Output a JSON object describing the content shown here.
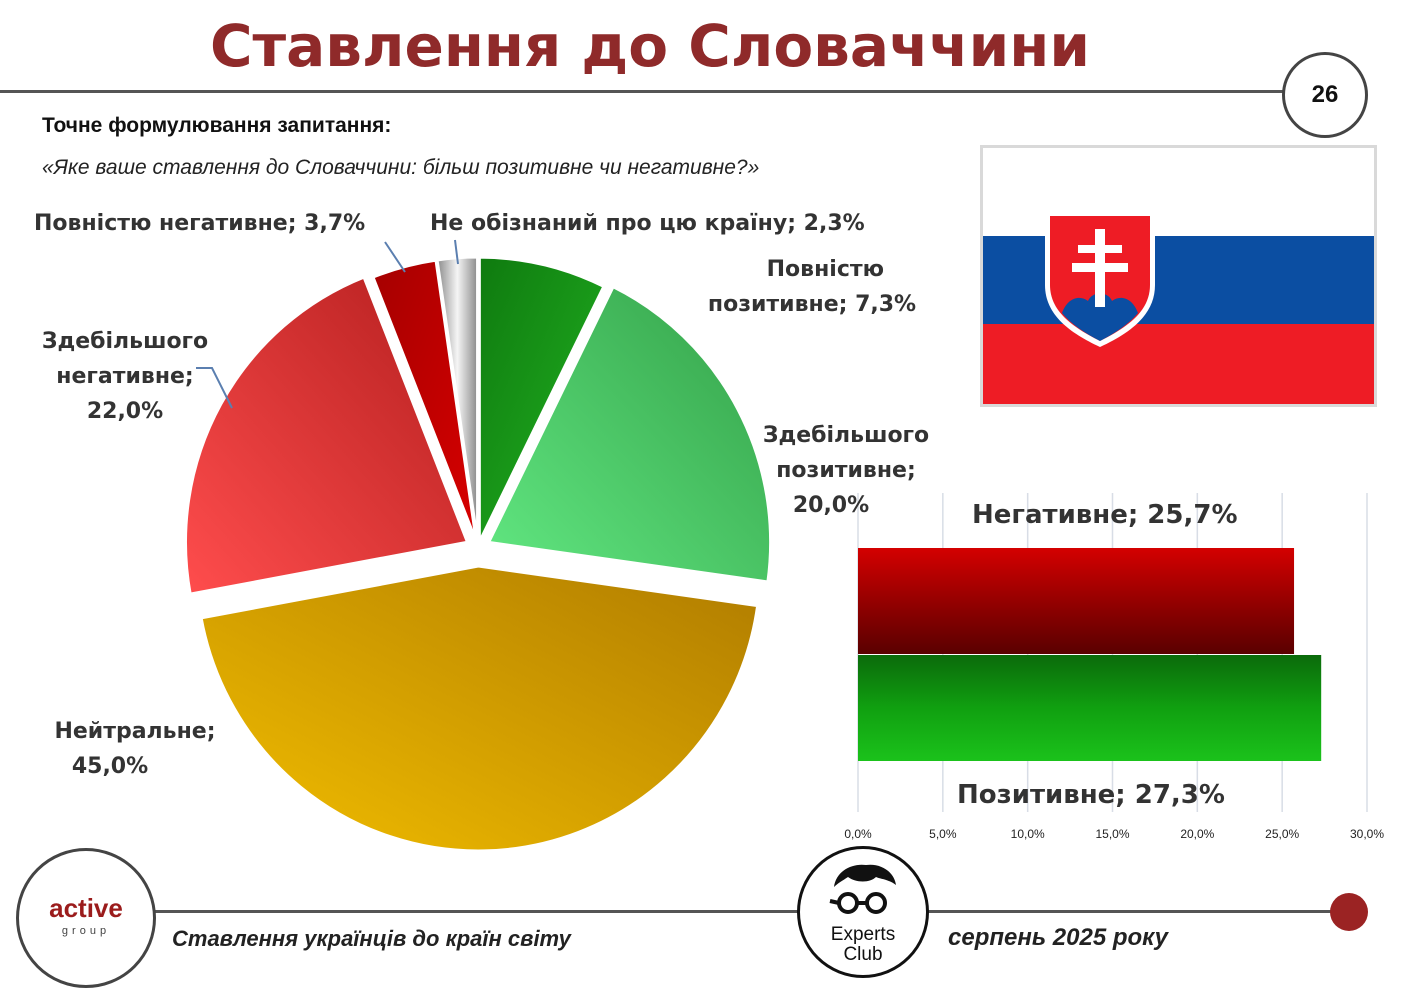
{
  "header": {
    "title": "Ставлення до Словаччини",
    "page_number": "26"
  },
  "question": {
    "heading": "Точне формулювання запитання:",
    "text": "«Яке ваше ставлення до Словаччини: більш позитивне чи негативне?»"
  },
  "pie_labels": {
    "full_neg_line1": "Повністю негативне; 3,7%",
    "unaware_line1": "Не обізнаний про цю країну; 2,3%",
    "full_pos_line1": "Повністю",
    "full_pos_line2": "позитивне; 7,3%",
    "most_pos_line1": "Здебільшого",
    "most_pos_line2": "позитивне;",
    "most_pos_line3": "20,0%",
    "most_neg_line1": "Здебільшого",
    "most_neg_line2": "негативне;",
    "most_neg_line3": "22,0%",
    "neutral_line1": "Нейтральне;",
    "neutral_line2": "45,0%"
  },
  "bar_labels": {
    "negative": "Негативне; 25,7%",
    "positive": "Позитивне; 27,3%"
  },
  "footer": {
    "left_text": "Ставлення українців до країн світу",
    "right_text": "серпень 2025 року",
    "logo_main": "active",
    "logo_sub": "group",
    "experts_line1": "Experts",
    "experts_line2": "Club"
  },
  "colors": {
    "title": "#8f2a2a",
    "full_positive": "#0a8a0a",
    "mostly_positive": "#4fd06a",
    "neutral": "#e0a800",
    "mostly_negative": "#e23a3a",
    "full_negative": "#c00000",
    "unaware": "#b8b8b8",
    "bar_negative": "#b30000",
    "bar_positive": "#12a012"
  },
  "chart_data": [
    {
      "type": "pie",
      "categories": [
        "Повністю позитивне",
        "Здебільшого позитивне",
        "Нейтральне",
        "Здебільшого негативне",
        "Повністю негативне",
        "Не обізнаний про цю країну"
      ],
      "values": [
        7.3,
        20.0,
        45.0,
        22.0,
        3.7,
        2.3
      ],
      "unit": "%"
    },
    {
      "type": "bar",
      "orientation": "horizontal",
      "categories": [
        "Негативне",
        "Позитивне"
      ],
      "values": [
        25.7,
        27.3
      ],
      "xlim": [
        0,
        30
      ],
      "xticks": [
        "0,0%",
        "5,0%",
        "10,0%",
        "15,0%",
        "20,0%",
        "25,0%",
        "30,0%"
      ],
      "grid": true
    }
  ]
}
